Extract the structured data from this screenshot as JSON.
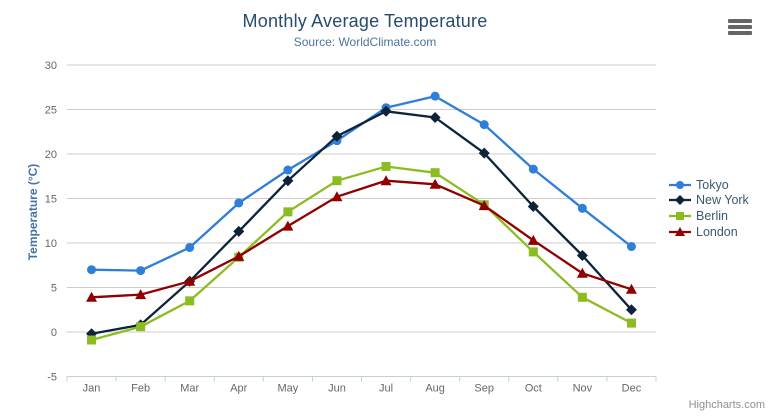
{
  "chart_data": {
    "type": "line",
    "title": "Monthly Average Temperature",
    "subtitle": "Source: WorldClimate.com",
    "categories": [
      "Jan",
      "Feb",
      "Mar",
      "Apr",
      "May",
      "Jun",
      "Jul",
      "Aug",
      "Sep",
      "Oct",
      "Nov",
      "Dec"
    ],
    "xlabel": "",
    "ylabel": "Temperature (°C)",
    "ylim": [
      -5,
      30
    ],
    "ytick_interval": 5,
    "grid": true,
    "legend_position": "right",
    "series": [
      {
        "name": "Tokyo",
        "color": "#2f7ed8",
        "marker": "circle",
        "values": [
          7.0,
          6.9,
          9.5,
          14.5,
          18.2,
          21.5,
          25.2,
          26.5,
          23.3,
          18.3,
          13.9,
          9.6
        ]
      },
      {
        "name": "New York",
        "color": "#0d233a",
        "marker": "diamond",
        "values": [
          -0.2,
          0.8,
          5.7,
          11.3,
          17.0,
          22.0,
          24.8,
          24.1,
          20.1,
          14.1,
          8.6,
          2.5
        ]
      },
      {
        "name": "Berlin",
        "color": "#8bbc21",
        "marker": "square",
        "values": [
          -0.9,
          0.6,
          3.5,
          8.4,
          13.5,
          17.0,
          18.6,
          17.9,
          14.3,
          9.0,
          3.9,
          1.0
        ]
      },
      {
        "name": "London",
        "color": "#910000",
        "marker": "triangle",
        "values": [
          3.9,
          4.2,
          5.7,
          8.5,
          11.9,
          15.2,
          17.0,
          16.6,
          14.2,
          10.3,
          6.6,
          4.8
        ]
      }
    ],
    "colors": {
      "title_text": "#274b6d",
      "subtitle_text": "#4d759e",
      "axis_title_text": "#4572a7",
      "axis_label_text": "#666666",
      "legend_text": "#3e576f",
      "gridline": "#cccccc",
      "axis_line": "#c0d0e0"
    }
  },
  "credits": {
    "label": "Highcharts.com"
  }
}
